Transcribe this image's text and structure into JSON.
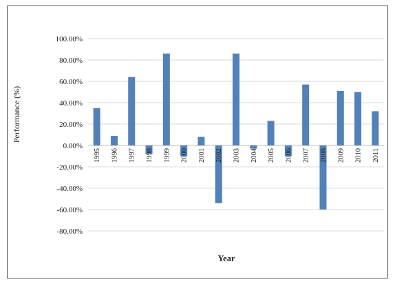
{
  "chart_data": {
    "type": "bar",
    "title": "",
    "xlabel": "Year",
    "ylabel": "Performance (%)",
    "ylim": [
      -80,
      100
    ],
    "ytick_step": 20,
    "ytick_labels": [
      "100.00%",
      "80.00%",
      "60.00%",
      "40.00%",
      "20.00%",
      "0.00%",
      "-20.00%",
      "-40.00%",
      "-60.00%",
      "-80.00%"
    ],
    "grid": "horizontal",
    "categories": [
      "1995",
      "1996",
      "1997",
      "1998",
      "1999",
      "2000",
      "2001",
      "2002",
      "2003",
      "2004",
      "2005",
      "2006",
      "2007",
      "2008",
      "2009",
      "2010",
      "2011"
    ],
    "values": [
      35,
      9,
      64,
      -8,
      86,
      -10,
      8,
      -54,
      86,
      -3,
      23,
      -10,
      57,
      -60,
      51,
      50,
      32
    ],
    "bar_color": "#4f81bd"
  }
}
